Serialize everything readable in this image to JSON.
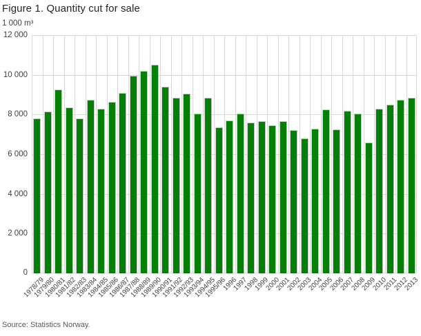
{
  "figure": {
    "title": "Figure 1. Quantity cut for sale",
    "unit_label": "1 000 m³",
    "source": "Source: Statistics Norway."
  },
  "colors": {
    "bar_fill": "#067f06",
    "bar_border": "#c9c9c9",
    "gridline": "#d9d9d9",
    "text_dark": "#262626",
    "text_axis": "#414141"
  },
  "chart_data": {
    "type": "bar",
    "title": "Figure 1. Quantity cut for sale",
    "xlabel": "",
    "ylabel": "1 000 m³",
    "ylim": [
      0,
      12000
    ],
    "ytick_interval": 2000,
    "ytick_labels": [
      "0",
      "2 000",
      "4 000",
      "6 000",
      "8 000",
      "10 000",
      "12 000"
    ],
    "grid": true,
    "legend": "none",
    "categories": [
      "1978/79",
      "1979/80",
      "1980/81",
      "1981/82",
      "1982/83",
      "1983/84",
      "1984/85",
      "1985/86",
      "1986/87",
      "1987/88",
      "1988/89",
      "1989/90",
      "1990/91",
      "1991/92",
      "1992/93",
      "1993/94",
      "1994/95",
      "1995/96",
      "1996",
      "1997",
      "1998",
      "1999",
      "2000",
      "2001",
      "2002",
      "2003",
      "2004",
      "2005",
      "2006",
      "2007",
      "2008",
      "2009",
      "2010",
      "2011",
      "2012",
      "2013"
    ],
    "values": [
      7800,
      8150,
      9250,
      8350,
      7800,
      8750,
      8300,
      8650,
      9100,
      9950,
      10200,
      10500,
      9400,
      8850,
      9050,
      8050,
      8850,
      7350,
      7700,
      8050,
      7600,
      7650,
      7450,
      7650,
      7200,
      6800,
      7300,
      8250,
      7250,
      8200,
      8050,
      6600,
      8300,
      8500,
      8750,
      8850
    ],
    "source": "Source: Statistics Norway."
  }
}
